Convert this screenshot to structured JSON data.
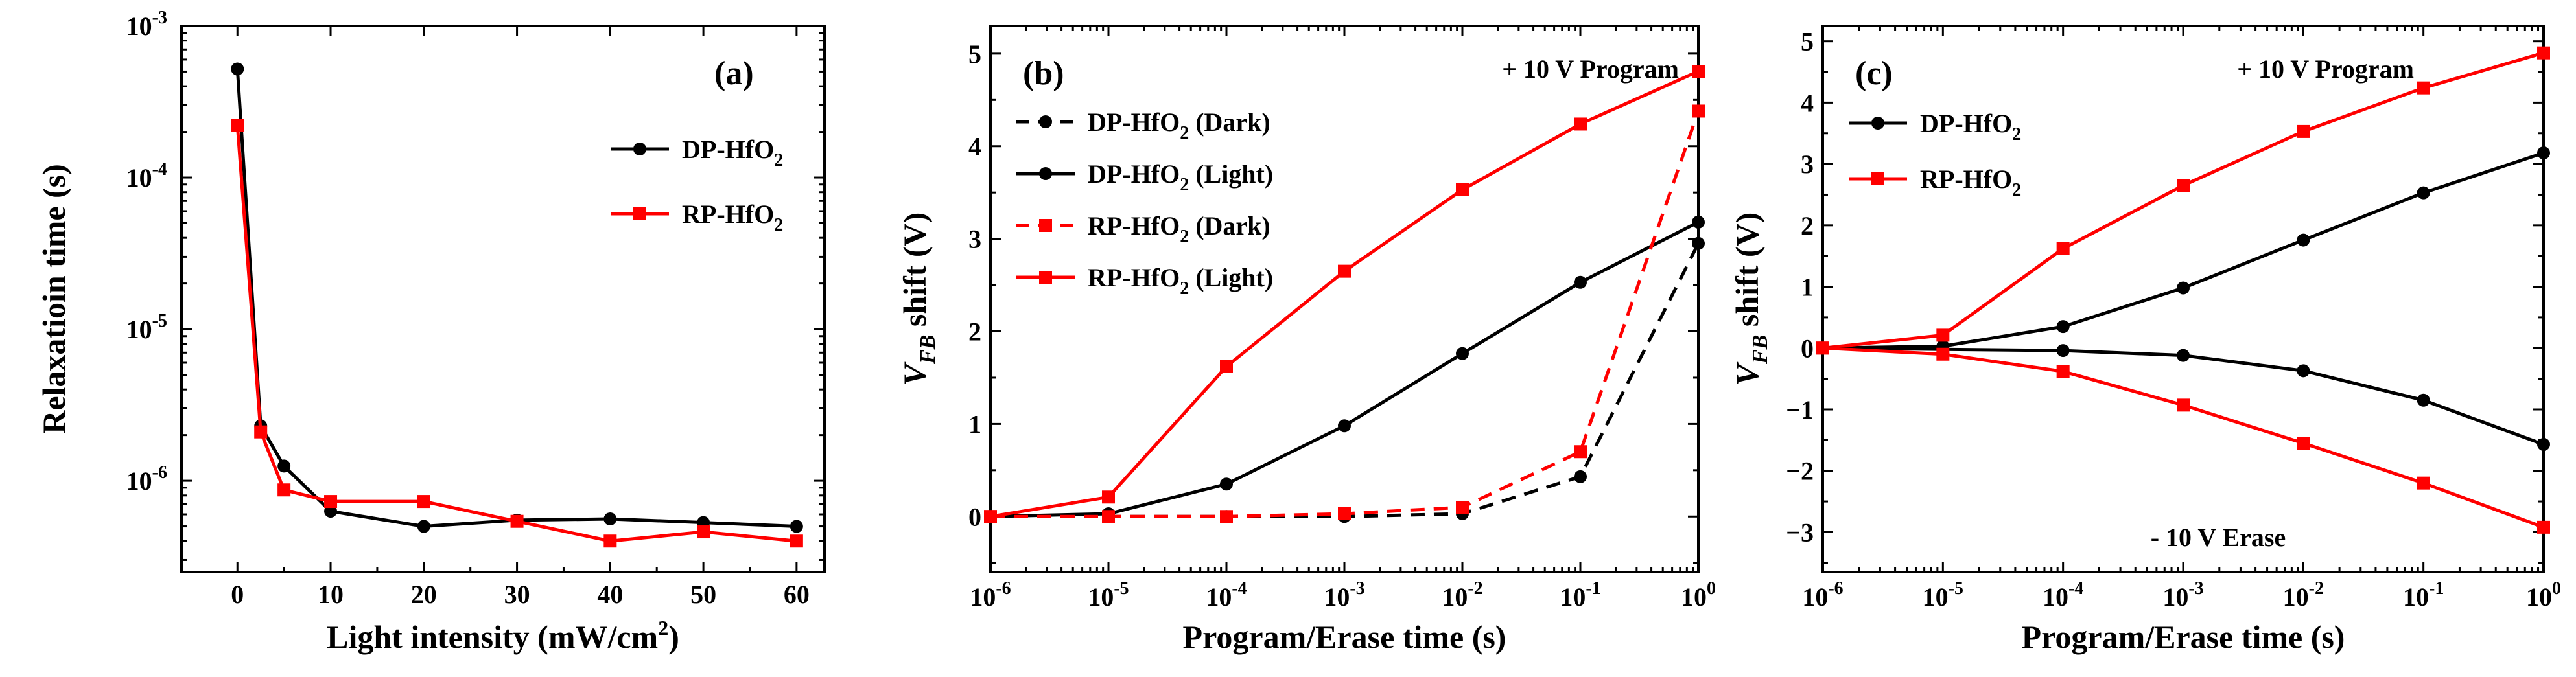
{
  "chart_data": [
    {
      "type": "line",
      "panel": "(a)",
      "xlabel": "Light intensity (mW/cm2)",
      "xlabel_main": "Light intensity (mW/cm",
      "xlabel_sup": "2",
      "xlabel_end": ")",
      "ylabel": "Relaxatioin time (s)",
      "xscale": "linear",
      "yscale": "log",
      "xlim": [
        -6,
        63
      ],
      "ylim": [
        2.5e-07,
        0.001
      ],
      "xticks": [
        0,
        10,
        20,
        30,
        40,
        50,
        60
      ],
      "xtick_labels": [
        "0",
        "10",
        "20",
        "30",
        "40",
        "50",
        "60"
      ],
      "yticks": [
        1e-06,
        1e-05,
        0.0001,
        0.001
      ],
      "ytick_labels": [
        {
          "base": "10",
          "exp": "-6"
        },
        {
          "base": "10",
          "exp": "-5"
        },
        {
          "base": "10",
          "exp": "-4"
        },
        {
          "base": "10",
          "exp": "-3"
        }
      ],
      "legend_position": "top-right",
      "series": [
        {
          "name": "DP-HfO2",
          "label_main": "DP-HfO",
          "label_sub": "2",
          "color": "#000000",
          "marker": "circle",
          "dash": "solid",
          "x": [
            0,
            2.5,
            5,
            10,
            20,
            30,
            40,
            50,
            60
          ],
          "y": [
            0.00052,
            2.3e-06,
            1.25e-06,
            6.3e-07,
            5e-07,
            5.5e-07,
            5.6e-07,
            5.3e-07,
            5e-07
          ]
        },
        {
          "name": "RP-HfO2",
          "label_main": "RP-HfO",
          "label_sub": "2",
          "color": "#ff0000",
          "marker": "square",
          "dash": "solid",
          "x": [
            0,
            2.5,
            5,
            10,
            20,
            30,
            40,
            50,
            60
          ],
          "y": [
            0.00022,
            2.1e-06,
            8.7e-07,
            7.3e-07,
            7.3e-07,
            5.4e-07,
            4e-07,
            4.6e-07,
            4e-07
          ]
        }
      ]
    },
    {
      "type": "line",
      "panel": "(b)",
      "annotation": "+ 10 V Program",
      "xlabel": "Program/Erase time (s)",
      "ylabel_italic": "V",
      "ylabel_sub": "FB",
      "ylabel_rest": " shift (V)",
      "ylabel": "VFB shift (V)",
      "xscale": "log",
      "yscale": "linear",
      "xlim": [
        1e-06,
        1
      ],
      "ylim": [
        -0.6,
        5.3
      ],
      "xticks": [
        1e-06,
        1e-05,
        0.0001,
        0.001,
        0.01,
        0.1,
        1
      ],
      "xtick_labels": [
        {
          "base": "10",
          "exp": "-6"
        },
        {
          "base": "10",
          "exp": "-5"
        },
        {
          "base": "10",
          "exp": "-4"
        },
        {
          "base": "10",
          "exp": "-3"
        },
        {
          "base": "10",
          "exp": "-2"
        },
        {
          "base": "10",
          "exp": "-1"
        },
        {
          "base": "10",
          "exp": "0"
        }
      ],
      "yticks": [
        0,
        1,
        2,
        3,
        4,
        5
      ],
      "ytick_labels": [
        "0",
        "1",
        "2",
        "3",
        "4",
        "5"
      ],
      "legend_position": "top-left",
      "series": [
        {
          "name": "DP-HfO2 (Dark)",
          "label_main": "DP-HfO",
          "label_sub": "2",
          "label_tail": " (Dark)",
          "color": "#000000",
          "marker": "circle",
          "dash": "dashed",
          "x": [
            1e-06,
            1e-05,
            0.0001,
            0.001,
            0.01,
            0.1,
            1
          ],
          "y": [
            0,
            0,
            0,
            0,
            0.03,
            0.43,
            2.95
          ]
        },
        {
          "name": "DP-HfO2 (Light)",
          "label_main": "DP-HfO",
          "label_sub": "2",
          "label_tail": " (Light)",
          "color": "#000000",
          "marker": "circle",
          "dash": "solid",
          "x": [
            1e-06,
            1e-05,
            0.0001,
            0.001,
            0.01,
            0.1,
            1
          ],
          "y": [
            0,
            0.03,
            0.35,
            0.98,
            1.76,
            2.53,
            3.18
          ]
        },
        {
          "name": "RP-HfO2 (Dark)",
          "label_main": "RP-HfO",
          "label_sub": "2",
          "label_tail": " (Dark)",
          "color": "#ff0000",
          "marker": "square",
          "dash": "dashed",
          "x": [
            1e-06,
            1e-05,
            0.0001,
            0.001,
            0.01,
            0.1,
            1
          ],
          "y": [
            0,
            0,
            0,
            0.03,
            0.1,
            0.7,
            4.38
          ]
        },
        {
          "name": "RP-HfO2 (Light)",
          "label_main": "RP-HfO",
          "label_sub": "2",
          "label_tail": " (Light)",
          "color": "#ff0000",
          "marker": "square",
          "dash": "solid",
          "x": [
            1e-06,
            1e-05,
            0.0001,
            0.001,
            0.01,
            0.1,
            1
          ],
          "y": [
            0,
            0.21,
            1.62,
            2.65,
            3.53,
            4.24,
            4.81
          ]
        }
      ]
    },
    {
      "type": "line",
      "panel": "(c)",
      "annotation_top": "+ 10 V Program",
      "annotation_bottom": "- 10 V Erase",
      "xlabel": "Program/Erase time (s)",
      "ylabel_italic": "V",
      "ylabel_sub": "FB",
      "ylabel_rest": " shift (V)",
      "ylabel": "VFB shift (V)",
      "xscale": "log",
      "yscale": "linear",
      "xlim": [
        1e-06,
        1
      ],
      "ylim": [
        -3.65,
        5.25
      ],
      "xticks": [
        1e-06,
        1e-05,
        0.0001,
        0.001,
        0.01,
        0.1,
        1
      ],
      "xtick_labels": [
        {
          "base": "10",
          "exp": "-6"
        },
        {
          "base": "10",
          "exp": "-5"
        },
        {
          "base": "10",
          "exp": "-4"
        },
        {
          "base": "10",
          "exp": "-3"
        },
        {
          "base": "10",
          "exp": "-2"
        },
        {
          "base": "10",
          "exp": "-1"
        },
        {
          "base": "10",
          "exp": "0"
        }
      ],
      "yticks": [
        -3,
        -2,
        -1,
        0,
        1,
        2,
        3,
        4,
        5
      ],
      "ytick_labels": [
        "−3",
        "−2",
        "−1",
        "0",
        "1",
        "2",
        "3",
        "4",
        "5"
      ],
      "legend_position": "top-left",
      "series": [
        {
          "name": "DP-HfO2",
          "label_main": "DP-HfO",
          "label_sub": "2",
          "color": "#000000",
          "marker": "circle",
          "dash": "solid",
          "x": [
            1e-06,
            1e-05,
            0.0001,
            0.001,
            0.01,
            0.1,
            1
          ],
          "y": [
            0,
            0.03,
            0.35,
            0.98,
            1.76,
            2.53,
            3.18
          ]
        },
        {
          "name": "RP-HfO2",
          "label_main": "RP-HfO",
          "label_sub": "2",
          "color": "#ff0000",
          "marker": "square",
          "dash": "solid",
          "x": [
            1e-06,
            1e-05,
            0.0001,
            0.001,
            0.01,
            0.1,
            1
          ],
          "y": [
            0,
            0.21,
            1.62,
            2.65,
            3.53,
            4.24,
            4.81
          ]
        },
        {
          "name": "DP-HfO2 erase",
          "color": "#000000",
          "marker": "circle",
          "dash": "solid",
          "in_legend": false,
          "x": [
            1e-06,
            1e-05,
            0.0001,
            0.001,
            0.01,
            0.1,
            1
          ],
          "y": [
            0,
            -0.02,
            -0.04,
            -0.12,
            -0.37,
            -0.85,
            -1.57
          ]
        },
        {
          "name": "RP-HfO2 erase",
          "color": "#ff0000",
          "marker": "square",
          "dash": "solid",
          "in_legend": false,
          "x": [
            1e-06,
            1e-05,
            0.0001,
            0.001,
            0.01,
            0.1,
            1
          ],
          "y": [
            0,
            -0.1,
            -0.38,
            -0.93,
            -1.55,
            -2.2,
            -2.92
          ]
        }
      ]
    }
  ]
}
